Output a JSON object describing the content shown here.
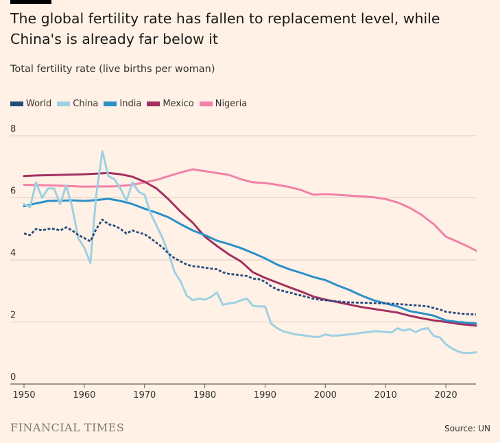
{
  "header": {
    "title": "The global fertility rate has fallen to replacement level, while China's is already far below it",
    "subtitle": "Total fertility rate (live births per woman)"
  },
  "footer": {
    "brand": "FINANCIAL TIMES",
    "source": "Source: UN"
  },
  "chart_data": {
    "type": "line",
    "title": "The global fertility rate has fallen to replacement level, while China's is already far below it",
    "ylabel": "Total fertility rate (live births per woman)",
    "xlabel": "",
    "xlim": [
      1950,
      2025
    ],
    "ylim": [
      0,
      8
    ],
    "xticks": [
      1950,
      1960,
      1970,
      1980,
      1990,
      2000,
      2010,
      2020
    ],
    "yticks": [
      0,
      2,
      4,
      6,
      8
    ],
    "grid": "horizontal",
    "legend": "top-left",
    "series": [
      {
        "name": "World",
        "color": "#264a7e",
        "dashed": true,
        "points": [
          [
            1950,
            4.85
          ],
          [
            1951,
            4.8
          ],
          [
            1952,
            5.0
          ],
          [
            1953,
            4.95
          ],
          [
            1954,
            5.0
          ],
          [
            1955,
            5.0
          ],
          [
            1956,
            4.95
          ],
          [
            1957,
            5.05
          ],
          [
            1958,
            4.95
          ],
          [
            1959,
            4.8
          ],
          [
            1960,
            4.7
          ],
          [
            1961,
            4.6
          ],
          [
            1962,
            5.0
          ],
          [
            1963,
            5.3
          ],
          [
            1964,
            5.15
          ],
          [
            1965,
            5.1
          ],
          [
            1966,
            5.0
          ],
          [
            1967,
            4.85
          ],
          [
            1968,
            4.95
          ],
          [
            1969,
            4.88
          ],
          [
            1970,
            4.83
          ],
          [
            1971,
            4.7
          ],
          [
            1972,
            4.55
          ],
          [
            1973,
            4.4
          ],
          [
            1974,
            4.2
          ],
          [
            1975,
            4.05
          ],
          [
            1976,
            3.95
          ],
          [
            1977,
            3.85
          ],
          [
            1978,
            3.8
          ],
          [
            1979,
            3.78
          ],
          [
            1980,
            3.75
          ],
          [
            1981,
            3.72
          ],
          [
            1982,
            3.7
          ],
          [
            1983,
            3.6
          ],
          [
            1984,
            3.55
          ],
          [
            1985,
            3.53
          ],
          [
            1986,
            3.5
          ],
          [
            1987,
            3.48
          ],
          [
            1988,
            3.4
          ],
          [
            1989,
            3.38
          ],
          [
            1990,
            3.3
          ],
          [
            1991,
            3.15
          ],
          [
            1992,
            3.05
          ],
          [
            1993,
            3.0
          ],
          [
            1994,
            2.95
          ],
          [
            1995,
            2.9
          ],
          [
            1996,
            2.85
          ],
          [
            1997,
            2.8
          ],
          [
            1998,
            2.75
          ],
          [
            1999,
            2.72
          ],
          [
            2000,
            2.7
          ],
          [
            2002,
            2.66
          ],
          [
            2004,
            2.63
          ],
          [
            2006,
            2.62
          ],
          [
            2008,
            2.61
          ],
          [
            2010,
            2.6
          ],
          [
            2012,
            2.58
          ],
          [
            2014,
            2.55
          ],
          [
            2016,
            2.52
          ],
          [
            2017,
            2.5
          ],
          [
            2018,
            2.45
          ],
          [
            2019,
            2.4
          ],
          [
            2020,
            2.33
          ],
          [
            2021,
            2.3
          ],
          [
            2022,
            2.28
          ],
          [
            2023,
            2.26
          ],
          [
            2024,
            2.25
          ],
          [
            2025,
            2.24
          ]
        ]
      },
      {
        "name": "China",
        "color": "#9ed0e3",
        "dashed": false,
        "points": [
          [
            1950,
            5.8
          ],
          [
            1951,
            5.7
          ],
          [
            1952,
            6.5
          ],
          [
            1953,
            6.0
          ],
          [
            1954,
            6.3
          ],
          [
            1955,
            6.3
          ],
          [
            1956,
            5.8
          ],
          [
            1957,
            6.4
          ],
          [
            1958,
            5.7
          ],
          [
            1959,
            4.7
          ],
          [
            1960,
            4.4
          ],
          [
            1961,
            3.9
          ],
          [
            1962,
            6.1
          ],
          [
            1963,
            7.5
          ],
          [
            1964,
            6.7
          ],
          [
            1965,
            6.6
          ],
          [
            1966,
            6.3
          ],
          [
            1967,
            5.9
          ],
          [
            1968,
            6.5
          ],
          [
            1969,
            6.2
          ],
          [
            1970,
            6.1
          ],
          [
            1971,
            5.5
          ],
          [
            1972,
            5.1
          ],
          [
            1973,
            4.7
          ],
          [
            1974,
            4.2
          ],
          [
            1975,
            3.6
          ],
          [
            1976,
            3.3
          ],
          [
            1977,
            2.85
          ],
          [
            1978,
            2.7
          ],
          [
            1979,
            2.75
          ],
          [
            1980,
            2.72
          ],
          [
            1981,
            2.8
          ],
          [
            1982,
            2.95
          ],
          [
            1983,
            2.55
          ],
          [
            1984,
            2.6
          ],
          [
            1985,
            2.62
          ],
          [
            1986,
            2.7
          ],
          [
            1987,
            2.75
          ],
          [
            1988,
            2.52
          ],
          [
            1989,
            2.5
          ],
          [
            1990,
            2.5
          ],
          [
            1991,
            1.95
          ],
          [
            1992,
            1.8
          ],
          [
            1993,
            1.7
          ],
          [
            1994,
            1.65
          ],
          [
            1995,
            1.6
          ],
          [
            1996,
            1.58
          ],
          [
            1997,
            1.55
          ],
          [
            1998,
            1.52
          ],
          [
            1999,
            1.52
          ],
          [
            2000,
            1.6
          ],
          [
            2001,
            1.56
          ],
          [
            2002,
            1.56
          ],
          [
            2003,
            1.58
          ],
          [
            2004,
            1.6
          ],
          [
            2005,
            1.62
          ],
          [
            2006,
            1.65
          ],
          [
            2007,
            1.67
          ],
          [
            2008,
            1.7
          ],
          [
            2009,
            1.7
          ],
          [
            2010,
            1.68
          ],
          [
            2011,
            1.66
          ],
          [
            2012,
            1.8
          ],
          [
            2013,
            1.72
          ],
          [
            2014,
            1.77
          ],
          [
            2015,
            1.67
          ],
          [
            2016,
            1.77
          ],
          [
            2017,
            1.8
          ],
          [
            2018,
            1.55
          ],
          [
            2019,
            1.5
          ],
          [
            2020,
            1.28
          ],
          [
            2021,
            1.15
          ],
          [
            2022,
            1.05
          ],
          [
            2023,
            1.0
          ],
          [
            2024,
            1.0
          ],
          [
            2025,
            1.02
          ]
        ]
      },
      {
        "name": "India",
        "color": "#2b8fc8",
        "dashed": false,
        "points": [
          [
            1950,
            5.73
          ],
          [
            1952,
            5.82
          ],
          [
            1954,
            5.9
          ],
          [
            1956,
            5.91
          ],
          [
            1958,
            5.92
          ],
          [
            1960,
            5.9
          ],
          [
            1962,
            5.93
          ],
          [
            1964,
            5.97
          ],
          [
            1966,
            5.9
          ],
          [
            1968,
            5.8
          ],
          [
            1970,
            5.65
          ],
          [
            1972,
            5.52
          ],
          [
            1974,
            5.37
          ],
          [
            1976,
            5.15
          ],
          [
            1978,
            4.95
          ],
          [
            1980,
            4.8
          ],
          [
            1982,
            4.62
          ],
          [
            1984,
            4.51
          ],
          [
            1986,
            4.38
          ],
          [
            1988,
            4.22
          ],
          [
            1990,
            4.05
          ],
          [
            1992,
            3.85
          ],
          [
            1994,
            3.7
          ],
          [
            1996,
            3.58
          ],
          [
            1998,
            3.45
          ],
          [
            2000,
            3.35
          ],
          [
            2002,
            3.18
          ],
          [
            2004,
            3.03
          ],
          [
            2006,
            2.85
          ],
          [
            2008,
            2.7
          ],
          [
            2010,
            2.6
          ],
          [
            2012,
            2.5
          ],
          [
            2014,
            2.35
          ],
          [
            2016,
            2.28
          ],
          [
            2018,
            2.2
          ],
          [
            2020,
            2.05
          ],
          [
            2022,
            2.0
          ],
          [
            2025,
            1.95
          ]
        ]
      },
      {
        "name": "Mexico",
        "color": "#a2305f",
        "dashed": false,
        "points": [
          [
            1950,
            6.7
          ],
          [
            1952,
            6.72
          ],
          [
            1954,
            6.73
          ],
          [
            1956,
            6.74
          ],
          [
            1958,
            6.75
          ],
          [
            1960,
            6.76
          ],
          [
            1962,
            6.78
          ],
          [
            1964,
            6.8
          ],
          [
            1966,
            6.76
          ],
          [
            1968,
            6.68
          ],
          [
            1970,
            6.52
          ],
          [
            1972,
            6.3
          ],
          [
            1974,
            5.95
          ],
          [
            1976,
            5.55
          ],
          [
            1978,
            5.2
          ],
          [
            1980,
            4.75
          ],
          [
            1982,
            4.45
          ],
          [
            1984,
            4.18
          ],
          [
            1986,
            3.95
          ],
          [
            1988,
            3.6
          ],
          [
            1990,
            3.42
          ],
          [
            1992,
            3.27
          ],
          [
            1994,
            3.12
          ],
          [
            1996,
            2.98
          ],
          [
            1998,
            2.82
          ],
          [
            2000,
            2.72
          ],
          [
            2002,
            2.64
          ],
          [
            2004,
            2.56
          ],
          [
            2006,
            2.48
          ],
          [
            2008,
            2.42
          ],
          [
            2010,
            2.36
          ],
          [
            2012,
            2.3
          ],
          [
            2014,
            2.2
          ],
          [
            2016,
            2.12
          ],
          [
            2018,
            2.05
          ],
          [
            2020,
            2.0
          ],
          [
            2022,
            1.94
          ],
          [
            2025,
            1.88
          ]
        ]
      },
      {
        "name": "Nigeria",
        "color": "#f280a8",
        "dashed": false,
        "points": [
          [
            1950,
            6.42
          ],
          [
            1955,
            6.4
          ],
          [
            1960,
            6.36
          ],
          [
            1965,
            6.37
          ],
          [
            1968,
            6.42
          ],
          [
            1970,
            6.5
          ],
          [
            1972,
            6.58
          ],
          [
            1974,
            6.7
          ],
          [
            1976,
            6.82
          ],
          [
            1978,
            6.92
          ],
          [
            1980,
            6.86
          ],
          [
            1982,
            6.8
          ],
          [
            1984,
            6.74
          ],
          [
            1986,
            6.6
          ],
          [
            1988,
            6.5
          ],
          [
            1990,
            6.48
          ],
          [
            1992,
            6.42
          ],
          [
            1994,
            6.35
          ],
          [
            1996,
            6.25
          ],
          [
            1998,
            6.1
          ],
          [
            2000,
            6.12
          ],
          [
            2002,
            6.1
          ],
          [
            2004,
            6.07
          ],
          [
            2006,
            6.05
          ],
          [
            2008,
            6.02
          ],
          [
            2010,
            5.96
          ],
          [
            2012,
            5.85
          ],
          [
            2014,
            5.68
          ],
          [
            2016,
            5.45
          ],
          [
            2018,
            5.15
          ],
          [
            2020,
            4.75
          ],
          [
            2022,
            4.58
          ],
          [
            2024,
            4.4
          ],
          [
            2025,
            4.3
          ]
        ]
      }
    ]
  }
}
